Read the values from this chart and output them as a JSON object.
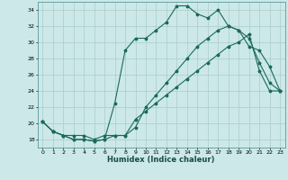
{
  "title": "",
  "xlabel": "Humidex (Indice chaleur)",
  "bg_color": "#cce8e8",
  "grid_color": "#aacccc",
  "line_color": "#1a6a5a",
  "xlim": [
    -0.5,
    23.5
  ],
  "ylim": [
    17.0,
    35.0
  ],
  "xticks": [
    0,
    1,
    2,
    3,
    4,
    5,
    6,
    7,
    8,
    9,
    10,
    11,
    12,
    13,
    14,
    15,
    16,
    17,
    18,
    19,
    20,
    21,
    22,
    23
  ],
  "yticks": [
    18,
    20,
    22,
    24,
    26,
    28,
    30,
    32,
    34
  ],
  "line1_x": [
    0,
    1,
    2,
    3,
    4,
    5,
    6,
    7,
    8,
    9,
    10,
    11,
    12,
    13,
    14,
    15,
    16,
    17,
    18,
    19,
    20,
    21,
    22,
    23
  ],
  "line1_y": [
    20.2,
    19.0,
    18.5,
    18.0,
    18.0,
    17.8,
    18.0,
    18.5,
    18.5,
    19.5,
    22.0,
    23.5,
    25.0,
    26.5,
    28.0,
    29.5,
    30.5,
    31.5,
    32.0,
    31.5,
    30.5,
    27.5,
    25.0,
    24.0
  ],
  "line2_x": [
    0,
    1,
    2,
    3,
    4,
    5,
    6,
    7,
    8,
    9,
    10,
    11,
    12,
    13,
    14,
    15,
    16,
    17,
    18,
    19,
    20,
    21,
    22,
    23
  ],
  "line2_y": [
    20.2,
    19.0,
    18.5,
    18.0,
    18.0,
    17.8,
    18.0,
    22.5,
    29.0,
    30.5,
    30.5,
    31.5,
    32.5,
    34.5,
    34.5,
    33.5,
    33.0,
    34.0,
    32.0,
    31.5,
    29.5,
    29.0,
    27.0,
    24.0
  ],
  "line3_x": [
    0,
    1,
    2,
    3,
    4,
    5,
    6,
    7,
    8,
    9,
    10,
    11,
    12,
    13,
    14,
    15,
    16,
    17,
    18,
    19,
    20,
    21,
    22,
    23
  ],
  "line3_y": [
    20.2,
    19.0,
    18.5,
    18.5,
    18.5,
    18.0,
    18.5,
    18.5,
    18.5,
    20.5,
    21.5,
    22.5,
    23.5,
    24.5,
    25.5,
    26.5,
    27.5,
    28.5,
    29.5,
    30.0,
    31.0,
    26.5,
    24.0,
    24.0
  ]
}
